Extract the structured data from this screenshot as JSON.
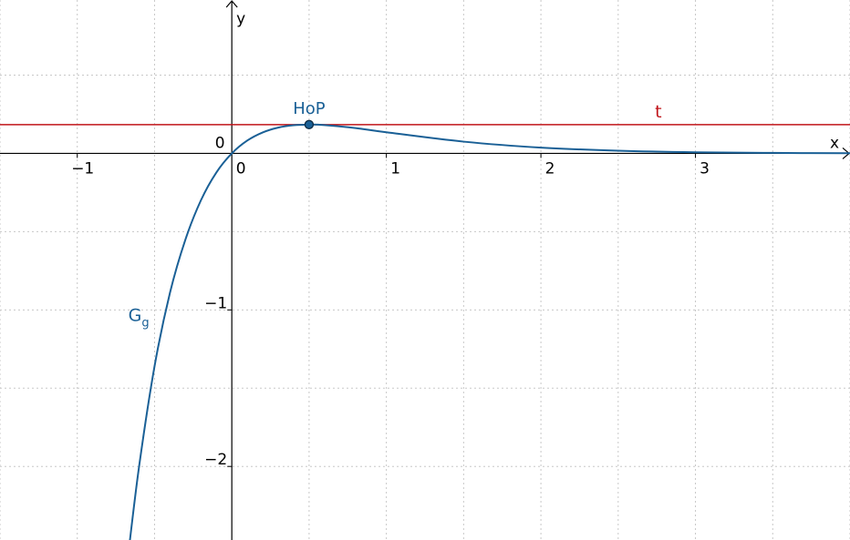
{
  "chart_data": {
    "type": "line",
    "xlabel": "x",
    "ylabel": "y",
    "xlim": [
      -1.5,
      4.0
    ],
    "ylim": [
      -2.47,
      0.98
    ],
    "grid": true,
    "x_ticks": [
      {
        "value": -1,
        "label": "−1"
      },
      {
        "value": 0,
        "label": "0"
      },
      {
        "value": 1,
        "label": "1"
      },
      {
        "value": 2,
        "label": "2"
      },
      {
        "value": 3,
        "label": "3"
      }
    ],
    "y_ticks": [
      {
        "value": -1,
        "label": "−1"
      },
      {
        "value": -2,
        "label": "−2"
      }
    ],
    "origin_label": "0",
    "series": [
      {
        "name": "G",
        "subscript": "g",
        "color": "#1a6096",
        "x": [
          -0.67,
          -0.6,
          -0.5,
          -0.4,
          -0.3,
          -0.2,
          -0.1,
          0,
          0.1,
          0.2,
          0.3,
          0.4,
          0.5,
          0.6,
          0.8,
          1.0,
          1.5,
          2.0,
          2.5,
          3.0,
          3.5,
          4.0
        ],
        "y": [
          -2.56,
          -2.0,
          -1.36,
          -0.89,
          -0.55,
          -0.3,
          -0.122,
          0,
          0.082,
          0.134,
          0.165,
          0.18,
          0.184,
          0.181,
          0.162,
          0.135,
          0.075,
          0.037,
          0.017,
          0.007,
          0.003,
          0.001
        ]
      }
    ],
    "tangent": {
      "label": "t",
      "y": 0.184,
      "color": "#c0141a"
    },
    "point": {
      "label": "HoP",
      "x": 0.5,
      "y": 0.184,
      "color": "#1a6096"
    }
  }
}
